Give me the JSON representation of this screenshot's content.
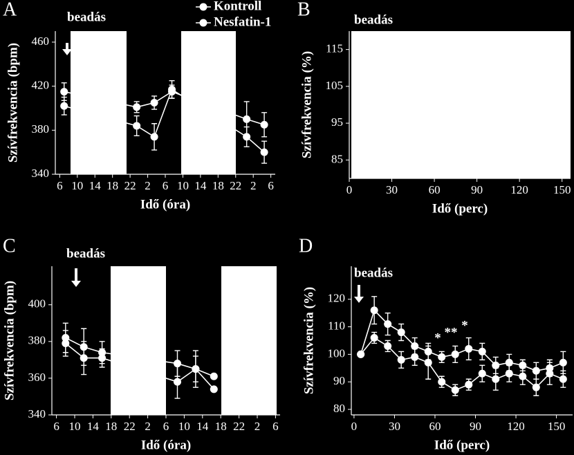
{
  "chart_data": [
    {
      "type": "line",
      "label": "A",
      "xlabel": "Idő (óra)",
      "ylabel": "Szívfrekvencia (bpm)",
      "x": [
        1,
        17.5,
        21.5,
        25.5,
        42.5,
        46.5
      ],
      "xlim": [
        -1,
        49
      ],
      "xticks": [
        {
          "value": 0,
          "label": "6"
        },
        {
          "value": 4,
          "label": "10"
        },
        {
          "value": 8,
          "label": "14"
        },
        {
          "value": 12,
          "label": "18"
        },
        {
          "value": 16,
          "label": "22"
        },
        {
          "value": 20,
          "label": "2"
        },
        {
          "value": 24,
          "label": "6"
        },
        {
          "value": 28,
          "label": "10"
        },
        {
          "value": 32,
          "label": "14"
        },
        {
          "value": 36,
          "label": "18"
        },
        {
          "value": 40,
          "label": "22"
        },
        {
          "value": 44,
          "label": "2"
        },
        {
          "value": 48,
          "label": "6"
        }
      ],
      "ylim": [
        340,
        470
      ],
      "yticks": [
        340,
        380,
        420,
        460
      ],
      "series": [
        {
          "name": "Kontroll",
          "color": "#ffffff",
          "values": [
            415,
            401,
            405,
            415,
            390,
            385
          ],
          "errors": [
            8,
            5,
            6,
            6,
            16,
            11
          ]
        },
        {
          "name": "Nesfatin-1",
          "color": "#ffffff",
          "values": [
            402,
            384,
            374,
            417,
            374,
            360
          ],
          "errors": [
            8,
            9,
            12,
            8,
            9,
            10
          ]
        }
      ],
      "annotations": [
        "beadás"
      ],
      "legend": "upper right"
    },
    {
      "type": "line",
      "label": "B",
      "xlabel": "Idő (perc)",
      "ylabel": "Szívfrekvencia (%)",
      "x": [],
      "xlim": [
        0,
        156
      ],
      "xticks": [
        0,
        30,
        60,
        90,
        120,
        150
      ],
      "ylim": [
        80,
        120
      ],
      "yticks": [
        85,
        95,
        105,
        115
      ],
      "series": [],
      "annotations": [
        "beadás"
      ]
    },
    {
      "type": "line",
      "label": "C",
      "xlabel": "Idő (óra)",
      "ylabel": "Szívfrekvencia (bpm)",
      "x": [
        2,
        6,
        10,
        26.5,
        30.5,
        34.5
      ],
      "xlim": [
        -1,
        49
      ],
      "xticks": [
        {
          "value": 0,
          "label": "6"
        },
        {
          "value": 4,
          "label": "10"
        },
        {
          "value": 8,
          "label": "14"
        },
        {
          "value": 12,
          "label": "18"
        },
        {
          "value": 16,
          "label": "22"
        },
        {
          "value": 20,
          "label": "2"
        },
        {
          "value": 24,
          "label": "6"
        },
        {
          "value": 28,
          "label": "10"
        },
        {
          "value": 32,
          "label": "14"
        },
        {
          "value": 36,
          "label": "18"
        },
        {
          "value": 40,
          "label": "22"
        },
        {
          "value": 44,
          "label": "2"
        },
        {
          "value": 48,
          "label": "6"
        }
      ],
      "ylim": [
        340,
        421
      ],
      "yticks": [
        340,
        360,
        380,
        400
      ],
      "series": [
        {
          "color": "#ffffff",
          "values": [
            382,
            377,
            374,
            368,
            365,
            361
          ],
          "errors": [
            8,
            10,
            6,
            7,
            7,
            0
          ]
        },
        {
          "color": "#ffffff",
          "values": [
            379,
            371,
            371,
            358,
            365,
            354
          ],
          "errors": [
            7,
            9,
            5,
            9,
            10,
            0
          ]
        }
      ],
      "annotations": [
        "beadás"
      ]
    },
    {
      "type": "line",
      "label": "D",
      "xlabel": "Idő (perc)",
      "ylabel": "Szívfrekvencia (%)",
      "x": [
        5,
        15,
        25,
        35,
        45,
        55,
        65,
        75,
        85,
        95,
        105,
        115,
        125,
        135,
        145,
        155
      ],
      "xlim": [
        -2,
        162
      ],
      "xticks": [
        0,
        30,
        60,
        90,
        120,
        150
      ],
      "ylim": [
        78,
        132
      ],
      "yticks": [
        80,
        90,
        100,
        110,
        120
      ],
      "series": [
        {
          "color": "#ffffff",
          "values": [
            100,
            116,
            111,
            108,
            103,
            101,
            99,
            100,
            102,
            101,
            96,
            97,
            96,
            94,
            95,
            97
          ],
          "errors": [
            0,
            5,
            4,
            3,
            3,
            3,
            2,
            3,
            4,
            3,
            3,
            3,
            2,
            3,
            3,
            4
          ]
        },
        {
          "color": "#ffffff",
          "values": [
            100,
            106,
            103,
            98,
            99,
            97,
            90,
            87,
            89,
            93,
            91,
            93,
            92,
            88,
            93,
            91
          ],
          "errors": [
            0,
            2,
            2,
            3,
            3,
            6,
            2,
            2,
            2,
            3,
            4,
            3,
            3,
            3,
            4,
            3
          ]
        }
      ],
      "annotations": [
        "beadás",
        "*",
        "**",
        "*"
      ]
    }
  ]
}
